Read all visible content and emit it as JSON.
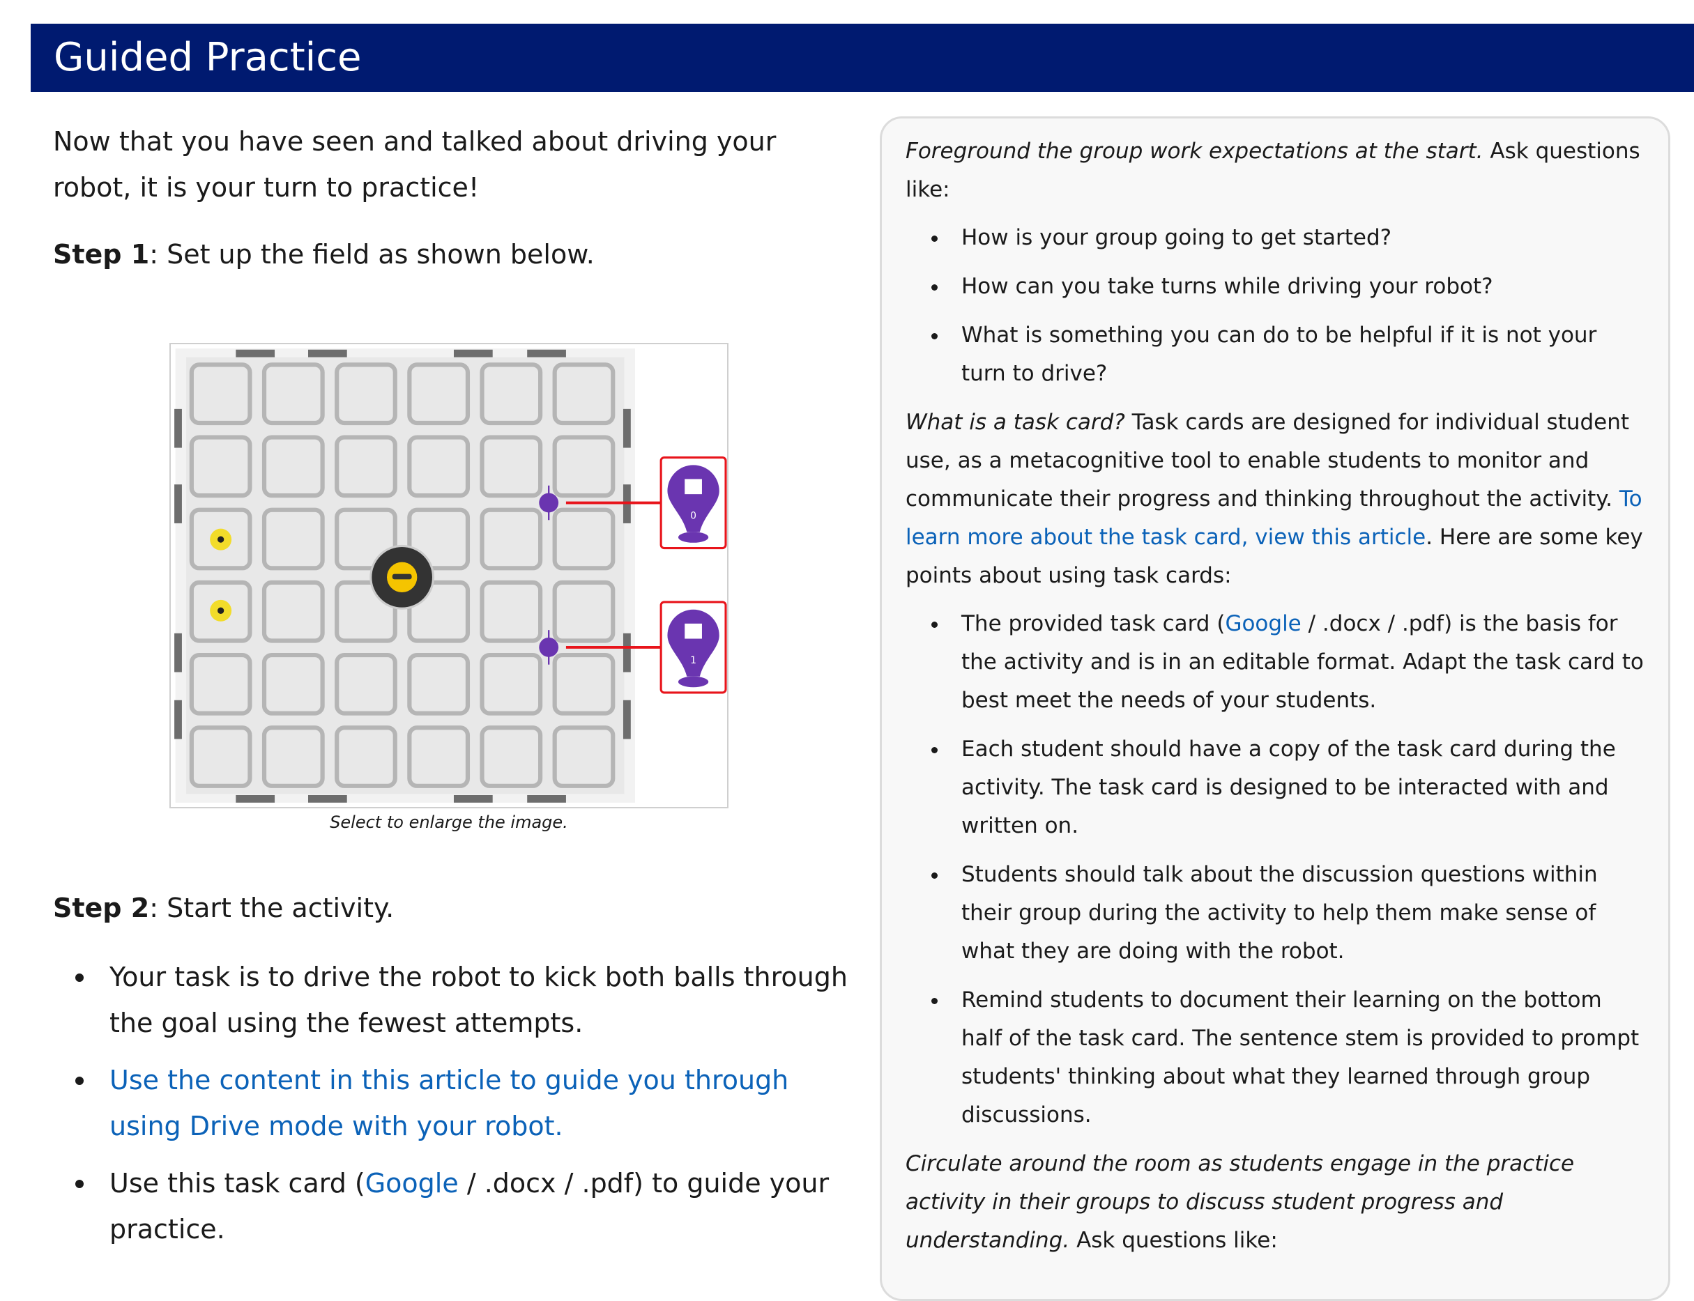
{
  "header": {
    "title": "Guided Practice"
  },
  "intro": "Now that you have seen and talked about driving your robot, it is your turn to practice!",
  "step1": {
    "label": "Step 1",
    "text": ": Set up the field as shown below."
  },
  "figure": {
    "caption": "Select to enlarge the image.",
    "post_labels": [
      "0",
      "1"
    ],
    "colors": {
      "post": "#6a35b0",
      "highlight": "#e8141b",
      "ball": "#f2dc2a",
      "robot": "#333333"
    }
  },
  "step2": {
    "label": "Step 2",
    "text": ": Start the activity."
  },
  "steps_list": {
    "item1": "Your task is to drive the robot to kick both balls through the goal using the fewest attempts.",
    "item2_link": "Use the content in this article to guide you through using Drive mode with your robot.",
    "item3_pre": "Use this task card (",
    "item3_link": "Google",
    "item3_post": " / .docx / .pdf) to guide your practice."
  },
  "panel": {
    "p1_italic": "Foreground the group work expectations at the start.",
    "p1_text": " Ask questions like:",
    "questions": [
      "How is your group going to get started?",
      "How can you take turns while driving your robot?",
      "What is something you can do to be helpful if it is not your turn to drive?"
    ],
    "p2_italic": "What is a task card?",
    "p2_text": "  Task cards are designed for individual student use, as a metacognitive tool to enable students to monitor and communicate their progress and thinking throughout the activity. ",
    "p2_link": "To learn more about the task card, view this article",
    "p2_after": ". Here are some key points about using task cards:",
    "points": {
      "p1_pre": "The provided task card (",
      "p1_link": "Google",
      "p1_post": " / .docx / .pdf) is the basis for the activity and is in an editable format. Adapt the task card to best meet the needs of your students.",
      "p2": "Each student should have a copy of the task card during the activity. The task card is designed to be interacted with and written on.",
      "p3": "Students should talk about the discussion questions within their group during the activity to help them make sense of what they are doing with the robot.",
      "p4": "Remind students to document their learning on the bottom half of the task card. The sentence stem is provided to prompt students' thinking about what they learned through group discussions."
    },
    "p3_italic": "Circulate around the room as students engage in the practice activity in their groups to discuss student progress and understanding.",
    "p3_text": " Ask questions like:"
  }
}
